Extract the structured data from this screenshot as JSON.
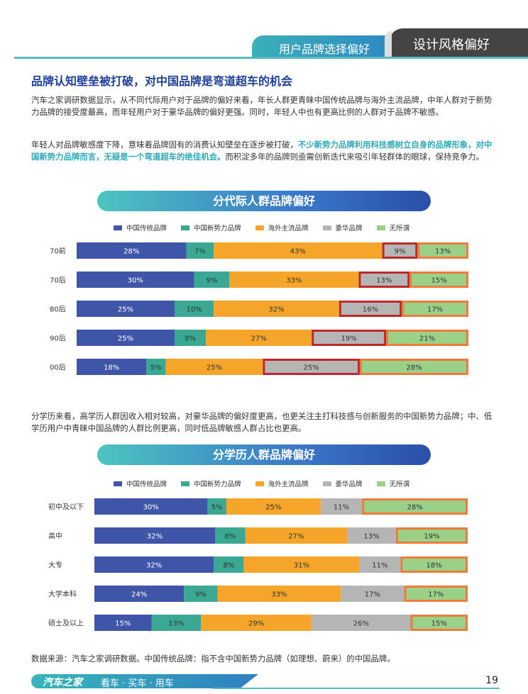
{
  "header": {
    "section_tab": "用户品牌选择偏好",
    "active_tab": "设计风格偏好"
  },
  "article": {
    "title": "品牌认知壁垒被打破，对中国品牌是弯道超车的机会",
    "para1": "汽车之家调研数据显示，从不同代际用户对于品牌的偏好来看，年长人群更青睐中国传统品牌与海外主流品牌，中年人群对于新势力品牌的接受度最高，而年轻用户对于豪华品牌的偏好更强。同时，年轻人中也有更高比例的人群对于品牌不敏感。",
    "para2_a": "年轻人对品牌敏感度下降，意味着品牌固有的消费认知壁垒在逐步被打破，",
    "para2_highlight": "不少新势力品牌利用科技感树立自身的品牌形象，对中国新势力品牌而言，无疑是一个弯道超车的绝佳机会。",
    "para2_b": "而积淀多年的品牌则亟需创新迭代来吸引年轻群体的眼球，保持竞争力。",
    "para3": "分学历来看，高学历人群因收入相对较高，对豪华品牌的偏好度更高，也更关注主打科技感与创新服务的中国新势力品牌；中、低学历用户中青睐中国品牌的人群比例更高，同时低品牌敏感人群占比也更高。",
    "source": "数据来源：汽车之家调研数据。中国传统品牌：指不含中国新势力品牌（如理想、蔚来）的中国品牌。"
  },
  "colors": {
    "traditional": "#3f55a8",
    "new_force": "#3aa892",
    "overseas": "#f5a52a",
    "luxury": "#b5b5b5",
    "indifferent": "#9bd088",
    "highlight_red": "#c0272d",
    "highlight_orange": "#f07a3a"
  },
  "legend": [
    "中国传统品牌",
    "中国新势力品牌",
    "海外主流品牌",
    "豪华品牌",
    "无所谓"
  ],
  "chart_data": [
    {
      "type": "bar",
      "title": "分代际人群品牌偏好",
      "stacked": true,
      "orientation": "horizontal",
      "categories": [
        "70前",
        "70后",
        "80后",
        "90后",
        "00后"
      ],
      "series": [
        {
          "name": "中国传统品牌",
          "values": [
            28,
            30,
            25,
            25,
            18
          ]
        },
        {
          "name": "中国新势力品牌",
          "values": [
            7,
            9,
            10,
            8,
            5
          ]
        },
        {
          "name": "海外主流品牌",
          "values": [
            43,
            33,
            32,
            27,
            25
          ]
        },
        {
          "name": "豪华品牌",
          "values": [
            9,
            13,
            16,
            19,
            25
          ]
        },
        {
          "name": "无所谓",
          "values": [
            13,
            15,
            17,
            21,
            28
          ]
        }
      ],
      "highlighted_series": [
        "豪华品牌",
        "无所谓"
      ]
    },
    {
      "type": "bar",
      "title": "分学历人群品牌偏好",
      "stacked": true,
      "orientation": "horizontal",
      "categories": [
        "初中及以下",
        "高中",
        "大专",
        "大学本科",
        "硕士及以上"
      ],
      "series": [
        {
          "name": "中国传统品牌",
          "values": [
            30,
            32,
            32,
            24,
            15
          ]
        },
        {
          "name": "中国新势力品牌",
          "values": [
            5,
            8,
            8,
            9,
            13
          ]
        },
        {
          "name": "海外主流品牌",
          "values": [
            25,
            27,
            31,
            33,
            29
          ]
        },
        {
          "name": "豪华品牌",
          "values": [
            11,
            13,
            11,
            17,
            26
          ]
        },
        {
          "name": "无所谓",
          "values": [
            28,
            19,
            18,
            17,
            15
          ]
        }
      ],
      "highlighted_series": [
        "无所谓"
      ]
    }
  ],
  "footer": {
    "brand": "汽车之家",
    "slogan": "看车 · 买车 · 用车",
    "page_number": "19"
  }
}
